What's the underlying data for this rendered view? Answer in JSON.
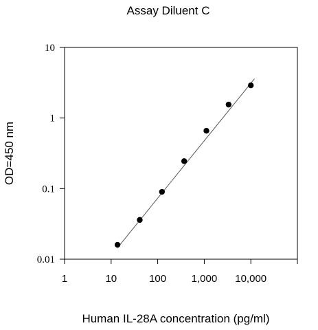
{
  "chart_data": {
    "type": "scatter",
    "title": "Assay Diluent C",
    "xlabel": "Human IL-28A concentration (pg/ml)",
    "ylabel": "OD=450 nm",
    "xscale": "log",
    "yscale": "log",
    "xlim": [
      1,
      100000
    ],
    "ylim": [
      0.01,
      10
    ],
    "x_ticks": [
      1,
      10,
      100,
      1000,
      10000
    ],
    "x_tick_labels": [
      "1",
      "10",
      "100",
      "1,000",
      "10,000"
    ],
    "y_ticks": [
      0.01,
      0.1,
      1,
      10
    ],
    "y_tick_labels": [
      "0.01",
      "0.1",
      "1",
      "10"
    ],
    "grid": false,
    "legend": "none",
    "series": [
      {
        "x": [
          13.7,
          41.2,
          123.5,
          370.4,
          1111.1,
          3333.3,
          10000
        ],
        "y": [
          0.016,
          0.036,
          0.09,
          0.245,
          0.66,
          1.55,
          2.9
        ]
      }
    ],
    "fit_line": {
      "x": [
        13.7,
        12000
      ],
      "y": [
        0.0145,
        3.6
      ]
    },
    "colors": {
      "marker": "#000000",
      "fit_line": "#555555",
      "axis": "#000000"
    }
  }
}
